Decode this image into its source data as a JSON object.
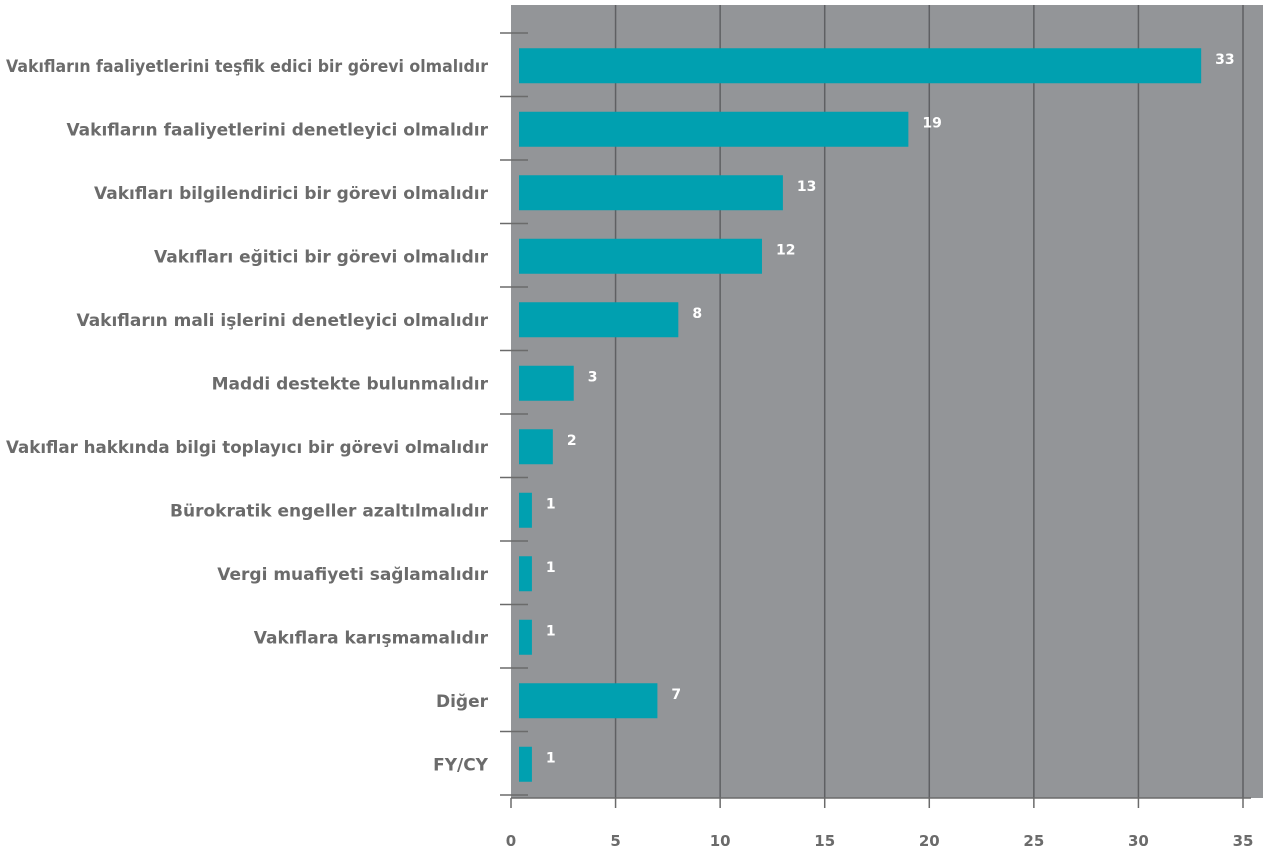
{
  "chart_data": {
    "type": "bar",
    "orientation": "horizontal",
    "categories": [
      "Vakıfların faaliyetlerini teşfik edici bir görevi olmalıdır",
      "Vakıfların faaliyetlerini denetleyici olmalıdır",
      "Vakıfları bilgilendirici bir görevi olmalıdır",
      "Vakıfları eğitici bir görevi olmalıdır",
      "Vakıfların mali işlerini denetleyici olmalıdır",
      "Maddi destekte bulunmalıdır",
      "Vakıflar hakkında bilgi toplayıcı bir görevi olmalıdır",
      "Bürokratik engeller azaltılmalıdır",
      "Vergi muafiyeti sağlamalıdır",
      "Vakıflara karışmamalıdır",
      "Diğer",
      "FY/CY"
    ],
    "values": [
      33,
      19,
      13,
      12,
      8,
      3,
      2,
      1,
      1,
      1,
      7,
      1
    ],
    "xlim": [
      0,
      35
    ],
    "xticks": [
      "0",
      "5",
      "10",
      "15",
      "20",
      "25",
      "30",
      "35"
    ],
    "grid": true,
    "legend": "none",
    "colors": {
      "plot_background": "#939598",
      "bar": "#00a0b0",
      "gridline": "#5f6063",
      "value_label": "#ffffff",
      "axis_text": "#6b6b6b"
    }
  }
}
